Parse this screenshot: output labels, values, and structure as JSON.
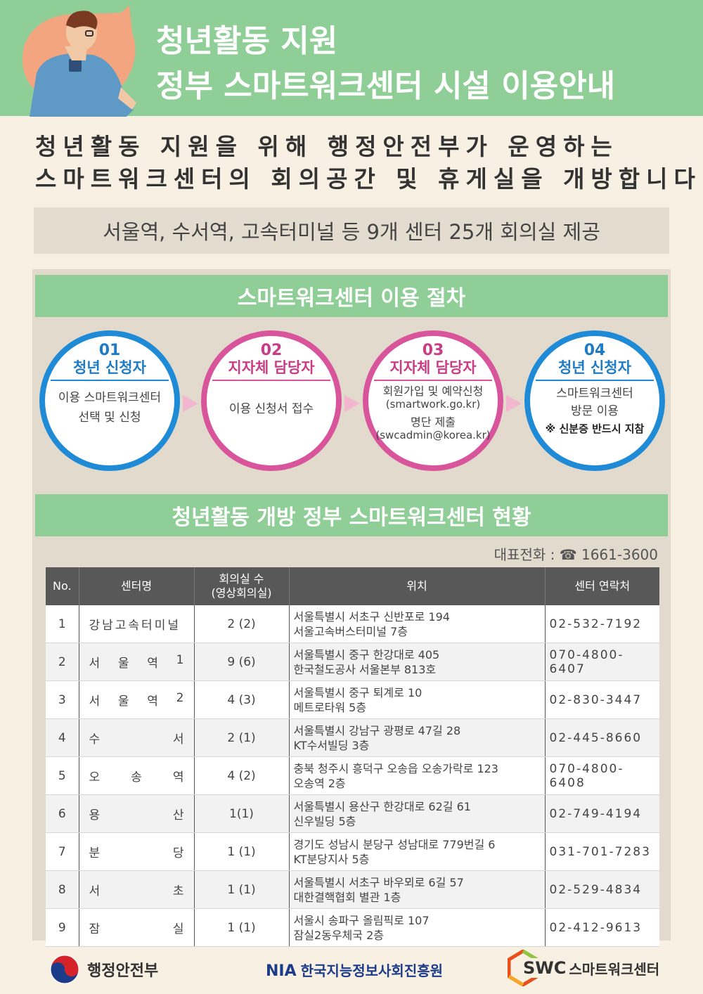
{
  "header": {
    "title_line1": "청년활동 지원",
    "title_line2": "정부 스마트워크센터 시설 이용안내"
  },
  "intro": {
    "line1": "청년활동 지원을 위해 행정안전부가 운영하는",
    "line2": "스마트워크센터의 회의공간 및 휴게실을 개방합니다."
  },
  "notice": "서울역, 수서역, 고속터미널 등 9개 센터 25개 회의실 제공",
  "procedure": {
    "title": "스마트워크센터 이용 절차",
    "steps": [
      {
        "num": "01",
        "who": "청년 신청자",
        "desc1": "이용 스마트워크센터",
        "desc2": "선택 및 신청"
      },
      {
        "num": "02",
        "who": "지자체 담당자",
        "desc1": "이용 신청서 접수"
      },
      {
        "num": "03",
        "who": "지자체 담당자",
        "desc1": "회원가입 및 예약신청",
        "desc2": "(smartwork.go.kr)",
        "desc3": "명단 제출",
        "desc4": "(swcadmin@korea.kr)"
      },
      {
        "num": "04",
        "who": "청년 신청자",
        "desc1": "스마트워크센터",
        "desc2": "방문 이용",
        "note": "※ 신분증 반드시 지참"
      }
    ]
  },
  "status": {
    "title": "청년활동 개방 정부 스마트워크센터 현황",
    "rep_phone": "대표전화 : ☎ 1661-3600",
    "columns": [
      "No.",
      "센터명",
      "회의실 수",
      "(영상회의실)",
      "위치",
      "센터 연락처"
    ],
    "rows": [
      {
        "no": "1",
        "name": [
          "강남고속터미널"
        ],
        "rooms": "2 (2)",
        "addr1": "서울특별시 서초구 신반포로 194",
        "addr2": "서울고속버스터미널 7층",
        "tel": "02-532-7192"
      },
      {
        "no": "2",
        "name": [
          "서",
          "울",
          "역",
          "1"
        ],
        "rooms": "9 (6)",
        "addr1": "서울특별시 중구 한강대로 405",
        "addr2": "한국철도공사 서울본부 813호",
        "tel": "070-4800-6407"
      },
      {
        "no": "3",
        "name": [
          "서",
          "울",
          "역",
          "2"
        ],
        "rooms": "4 (3)",
        "addr1": "서울특별시 중구 퇴계로 10",
        "addr2": "메트로타워 5층",
        "tel": "02-830-3447"
      },
      {
        "no": "4",
        "name": [
          "수",
          "서"
        ],
        "rooms": "2 (1)",
        "addr1": "서울특별시 강남구 광평로 47길 28",
        "addr2": "KT수서빌딩 3층",
        "tel": "02-445-8660"
      },
      {
        "no": "5",
        "name": [
          "오",
          "송",
          "역"
        ],
        "rooms": "4 (2)",
        "addr1": "충북 청주시 흥덕구 오송읍 오송가락로 123",
        "addr2": "오송역 2층",
        "tel": "070-4800-6408"
      },
      {
        "no": "6",
        "name": [
          "용",
          "산"
        ],
        "rooms": "1(1)",
        "addr1": "서울특별시 용산구 한강대로 62길 61",
        "addr2": "신우빌딩 5층",
        "tel": "02-749-4194"
      },
      {
        "no": "7",
        "name": [
          "분",
          "당"
        ],
        "rooms": "1 (1)",
        "addr1": "경기도 성남시 분당구 성남대로 779번길 6",
        "addr2": "KT분당지사 5층",
        "tel": "031-701-7283"
      },
      {
        "no": "8",
        "name": [
          "서",
          "초"
        ],
        "rooms": "1 (1)",
        "addr1": "서울특별시 서초구 바우뫼로 6길 57",
        "addr2": "대한결핵협회 별관 1층",
        "tel": "02-529-4834"
      },
      {
        "no": "9",
        "name": [
          "잠",
          "실"
        ],
        "rooms": "1 (1)",
        "addr1": "서울시 송파구 올림픽로 107",
        "addr2": "잠실2동우체국 2층",
        "tel": "02-412-9613"
      }
    ]
  },
  "footer": {
    "mois": "행정안전부",
    "nia_abbr": "NIA",
    "nia": "한국지능정보사회진흥원",
    "swc_abbr": "SWC",
    "swc": "스마트워크센터"
  },
  "colors": {
    "green": "#8fcf97",
    "blue": "#1f8ad6",
    "pink": "#d9559b",
    "table_header": "#585858"
  }
}
